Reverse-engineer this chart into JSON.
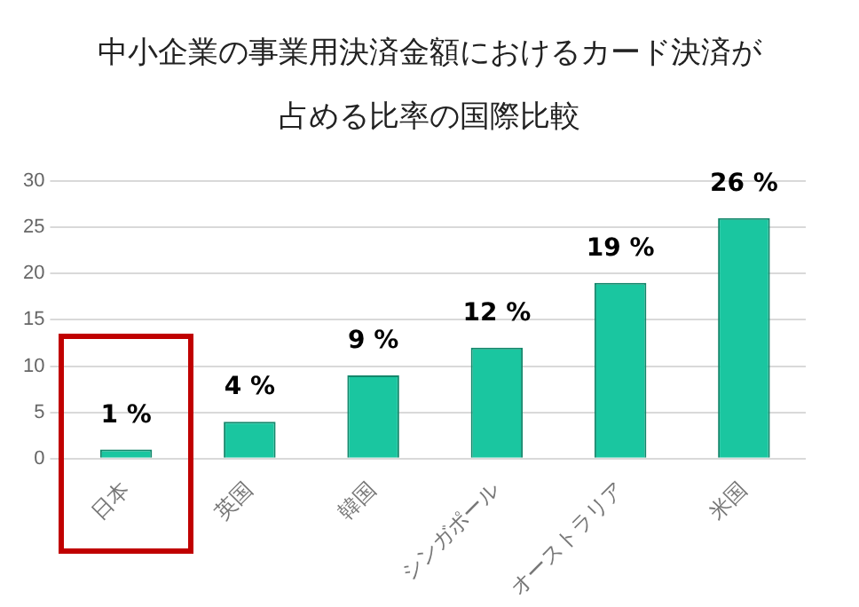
{
  "chart_data": {
    "type": "bar",
    "title": "中小企業の事業用決済金額におけるカード決済が占める比率の国際比較",
    "categories": [
      "日本",
      "英国",
      "韓国",
      "シンガポール",
      "オーストラリア",
      "米国"
    ],
    "values": [
      1,
      4,
      9,
      12,
      19,
      26
    ],
    "value_labels": [
      "1 %",
      "4 %",
      "9 %",
      "12 %",
      "19 %",
      "26 %"
    ],
    "color": "#1ac6a0",
    "ylim": [
      0,
      30
    ],
    "yticks": [
      0,
      5,
      10,
      15,
      20,
      25,
      30
    ],
    "grid": "y",
    "legend": false
  }
}
